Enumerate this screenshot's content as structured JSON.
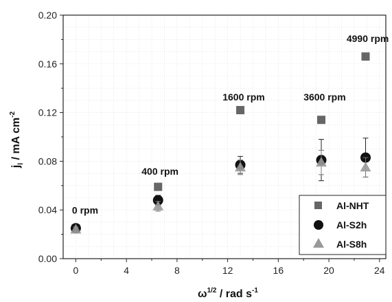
{
  "chart_data": {
    "type": "scatter",
    "xlabel_main": "ω",
    "xlabel_sup": "1/2",
    "xlabel_rest": " / rad s",
    "xlabel_sup2": "-1",
    "ylabel_main": "j",
    "ylabel_sub": "l",
    "ylabel_rest": " / mA cm",
    "ylabel_sup": "-2",
    "xlim": [
      -1,
      24.5
    ],
    "ylim": [
      0,
      0.2
    ],
    "xticks": [
      0,
      4,
      8,
      12,
      16,
      20,
      24
    ],
    "xtick_labels": [
      "0",
      "4",
      "8",
      "12",
      "16",
      "20",
      "24"
    ],
    "yticks": [
      0,
      0.04,
      0.08,
      0.12,
      0.16,
      0.2
    ],
    "ytick_labels": [
      "0.00",
      "0.04",
      "0.08",
      "0.12",
      "0.16",
      "0.20"
    ],
    "grid": true,
    "legend_position": "bottom-right",
    "series": [
      {
        "name": "Al-NHT",
        "marker": "square",
        "color": "#666666",
        "x": [
          0,
          6.5,
          13.0,
          19.4,
          22.9
        ],
        "y": [
          0.025,
          0.059,
          0.122,
          0.114,
          0.166
        ],
        "err": [
          0,
          0,
          0,
          0,
          0
        ]
      },
      {
        "name": "Al-S2h",
        "marker": "circle",
        "color": "#111111",
        "x": [
          0,
          6.5,
          13.0,
          19.4,
          22.9
        ],
        "y": [
          0.025,
          0.048,
          0.077,
          0.081,
          0.083
        ],
        "err": [
          0.002,
          0.004,
          0.007,
          0.017,
          0.016
        ]
      },
      {
        "name": "Al-S8h",
        "marker": "triangle",
        "color": "#999999",
        "x": [
          0,
          6.5,
          13.0,
          19.4,
          22.9
        ],
        "y": [
          0.024,
          0.043,
          0.075,
          0.079,
          0.075
        ],
        "err": [
          0.002,
          0.004,
          0.006,
          0.01,
          0.008
        ]
      }
    ],
    "annotations": [
      {
        "text": "0 rpm",
        "x": -0.3,
        "y": 0.037
      },
      {
        "text": "400 rpm",
        "x": 5.2,
        "y": 0.069
      },
      {
        "text": "1600 rpm",
        "x": 11.6,
        "y": 0.13
      },
      {
        "text": "3600 rpm",
        "x": 18.0,
        "y": 0.13
      },
      {
        "text": "4990 rpm",
        "x": 21.4,
        "y": 0.178
      }
    ]
  }
}
